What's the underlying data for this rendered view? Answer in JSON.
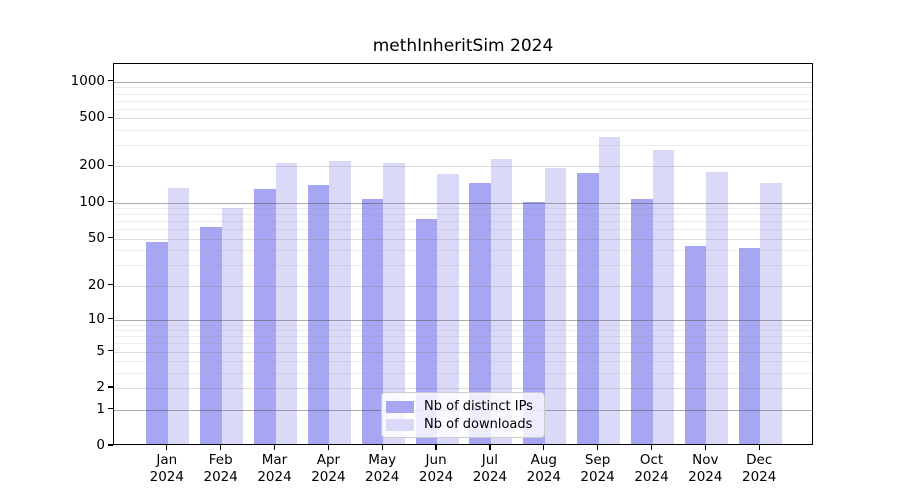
{
  "chart_data": {
    "type": "bar",
    "title": "methInheritSim 2024",
    "categories": [
      "Jan",
      "Feb",
      "Mar",
      "Apr",
      "May",
      "Jun",
      "Jul",
      "Aug",
      "Sep",
      "Oct",
      "Nov",
      "Dec"
    ],
    "year_label": "2024",
    "series": [
      {
        "name": "Nb of distinct IPs",
        "color": "#a6a6f2",
        "values": [
          45,
          60,
          125,
          135,
          103,
          70,
          140,
          98,
          170,
          103,
          42,
          40
        ]
      },
      {
        "name": "Nb of downloads",
        "color": "#dadaf8",
        "values": [
          128,
          87,
          205,
          212,
          205,
          167,
          220,
          188,
          337,
          262,
          172,
          140
        ]
      }
    ],
    "yscale": "log1p",
    "yticks": [
      0,
      1,
      2,
      5,
      10,
      20,
      50,
      100,
      200,
      500,
      1000
    ],
    "minor_yticks": [
      3,
      4,
      6,
      7,
      8,
      9,
      30,
      40,
      60,
      70,
      80,
      90,
      300,
      400,
      600,
      700,
      800,
      900
    ],
    "ylim": [
      0,
      1400
    ],
    "grid": true,
    "legend_position": "lower-center",
    "xlabel": "",
    "ylabel": ""
  }
}
